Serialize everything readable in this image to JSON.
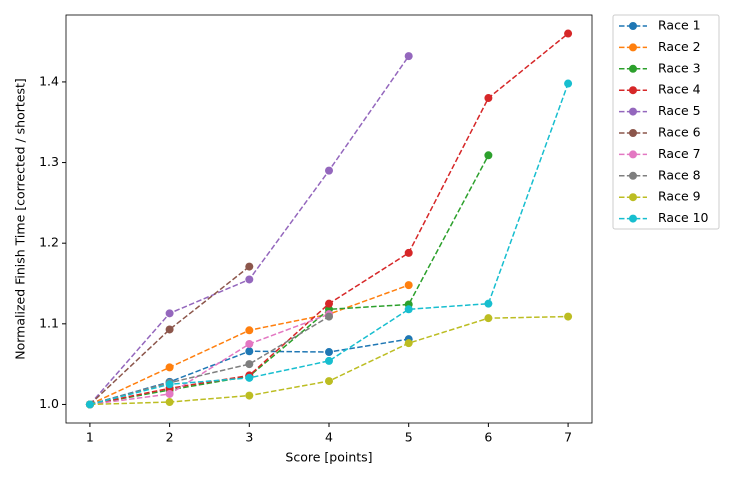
{
  "chart_data": {
    "type": "line",
    "x_label": "Score [points]",
    "y_label": "Normalized Finish Time [corrected / shortest]",
    "x": [
      1,
      2,
      3,
      4,
      5,
      6,
      7
    ],
    "xlim": [
      0.7,
      7.3
    ],
    "xticks": [
      1,
      2,
      3,
      4,
      5,
      6,
      7
    ],
    "ylim": [
      0.977,
      1.483
    ],
    "yticks": [
      {
        "value": 1.0,
        "label": "1.0"
      },
      {
        "value": 1.1,
        "label": "1.1"
      },
      {
        "value": 1.2,
        "label": "1.2"
      },
      {
        "value": 1.3,
        "label": "1.3"
      },
      {
        "value": 1.4,
        "label": "1.4"
      }
    ],
    "legend": "outside-upper-right",
    "series": [
      {
        "name": "Race 1",
        "color": "#1f77b4",
        "values": [
          1.0,
          1.028,
          1.066,
          1.065,
          1.081,
          null,
          null
        ]
      },
      {
        "name": "Race 2",
        "color": "#ff7f0e",
        "values": [
          1.0,
          1.046,
          1.092,
          1.112,
          1.148,
          null,
          null
        ]
      },
      {
        "name": "Race 3",
        "color": "#2ca02c",
        "values": [
          1.0,
          1.018,
          1.035,
          1.118,
          1.124,
          1.309,
          null
        ]
      },
      {
        "name": "Race 4",
        "color": "#d62728",
        "values": [
          1.0,
          1.02,
          1.036,
          1.125,
          1.188,
          1.38,
          1.46
        ]
      },
      {
        "name": "Race 5",
        "color": "#9467bd",
        "values": [
          1.0,
          1.113,
          1.155,
          1.29,
          1.432,
          null,
          null
        ]
      },
      {
        "name": "Race 6",
        "color": "#8c564b",
        "values": [
          1.0,
          1.093,
          1.171,
          null,
          null,
          null,
          null
        ]
      },
      {
        "name": "Race 7",
        "color": "#e377c2",
        "values": [
          1.0,
          1.013,
          1.075,
          1.112,
          null,
          null,
          null
        ]
      },
      {
        "name": "Race 8",
        "color": "#7f7f7f",
        "values": [
          1.0,
          1.027,
          1.05,
          1.109,
          null,
          null,
          null
        ]
      },
      {
        "name": "Race 9",
        "color": "#bcbd22",
        "values": [
          1.0,
          1.003,
          1.011,
          1.029,
          1.076,
          1.107,
          1.109
        ]
      },
      {
        "name": "Race 10",
        "color": "#17becf",
        "values": [
          1.0,
          1.025,
          1.033,
          1.054,
          1.118,
          1.125,
          1.398
        ]
      }
    ]
  }
}
